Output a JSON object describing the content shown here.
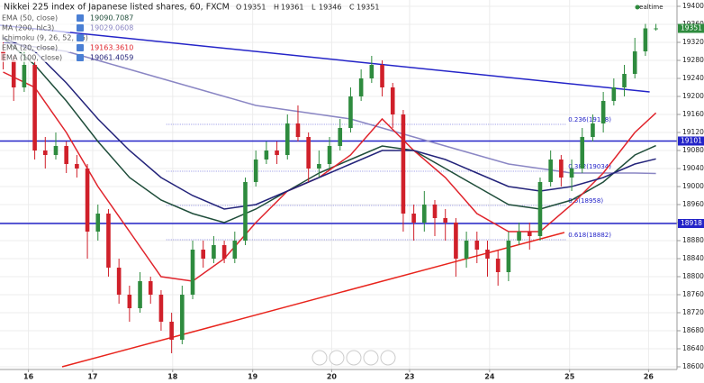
{
  "chart_data": {
    "type": "candlestick",
    "title": "Nikkei 225 index of Japanese listed shares, 60, FXCM",
    "ohlc_header": {
      "labels": [
        "O",
        "H",
        "L",
        "C"
      ],
      "values": [
        19351,
        19361,
        19346,
        19351
      ]
    },
    "realtime": "realtime",
    "up_color": "#2e8b3e",
    "down_color": "#d0202a",
    "ylim": [
      18600,
      19400
    ],
    "yticks": [
      18600,
      18640,
      18680,
      18720,
      18760,
      18800,
      18840,
      18880,
      18920,
      18960,
      19000,
      19040,
      19080,
      19120,
      19160,
      19200,
      19240,
      19280,
      19320,
      19360,
      19400
    ],
    "grid": true,
    "xlim": [
      -0.3,
      64
    ],
    "xticks": [
      {
        "value": 2.4,
        "label": "16"
      },
      {
        "value": 8.5,
        "label": "17"
      },
      {
        "value": 16.1,
        "label": "18"
      },
      {
        "value": 23.7,
        "label": "19"
      },
      {
        "value": 31.2,
        "label": "20"
      },
      {
        "value": 38.6,
        "label": "23"
      },
      {
        "value": 46.2,
        "label": "24"
      },
      {
        "value": 53.8,
        "label": "25"
      },
      {
        "value": 61.3,
        "label": "26"
      }
    ],
    "ohlc": {
      "open": [
        19300,
        19280,
        19220,
        19270,
        19080,
        19070,
        19090,
        19050,
        19040,
        18900,
        18940,
        18820,
        18760,
        18730,
        18790,
        18760,
        18700,
        18660,
        18760,
        18860,
        18840,
        18870,
        18840,
        18880,
        19010,
        19060,
        19080,
        19070,
        19140,
        19110,
        19040,
        19050,
        19090,
        19130,
        19200,
        19240,
        19270,
        19220,
        19160,
        18940,
        18920,
        18960,
        18930,
        18920,
        18840,
        18880,
        18860,
        18840,
        18810,
        18880,
        18900,
        18890,
        19010,
        19060,
        19020,
        19040,
        19110,
        19140,
        19190,
        19220,
        19250,
        19300,
        19351
      ],
      "high": [
        19320,
        19290,
        19300,
        19280,
        19110,
        19120,
        19100,
        19070,
        19050,
        18960,
        18950,
        18840,
        18780,
        18810,
        18800,
        18770,
        18720,
        18780,
        18880,
        18880,
        18890,
        18880,
        18900,
        19020,
        19080,
        19100,
        19100,
        19160,
        19180,
        19120,
        19080,
        19110,
        19150,
        19220,
        19260,
        19290,
        19280,
        19230,
        19170,
        18960,
        18990,
        18970,
        18950,
        18930,
        18900,
        18900,
        18880,
        18860,
        18900,
        18920,
        18920,
        19020,
        19080,
        19070,
        19060,
        19130,
        19160,
        19210,
        19240,
        19270,
        19330,
        19361,
        19361
      ],
      "low": [
        19260,
        19190,
        19210,
        19060,
        19040,
        19060,
        19030,
        19020,
        18840,
        18880,
        18800,
        18740,
        18700,
        18720,
        18740,
        18680,
        18630,
        18650,
        18750,
        18820,
        18830,
        18830,
        18830,
        18870,
        19000,
        19050,
        19050,
        19060,
        19100,
        19010,
        19020,
        19040,
        19080,
        19120,
        19190,
        19230,
        19200,
        19130,
        18900,
        18880,
        18900,
        18890,
        18880,
        18800,
        18820,
        18830,
        18800,
        18780,
        18790,
        18870,
        18860,
        18880,
        19000,
        19000,
        18990,
        19030,
        19100,
        19120,
        19180,
        19200,
        19240,
        19290,
        19346
      ],
      "close": [
        19280,
        19220,
        19270,
        19080,
        19070,
        19090,
        19050,
        19040,
        18900,
        18940,
        18820,
        18760,
        18730,
        18790,
        18760,
        18700,
        18660,
        18760,
        18860,
        18840,
        18870,
        18840,
        18880,
        19010,
        19060,
        19080,
        19070,
        19140,
        19110,
        19040,
        19050,
        19090,
        19130,
        19200,
        19240,
        19270,
        19220,
        19160,
        18940,
        18920,
        18960,
        18930,
        18920,
        18840,
        18880,
        18860,
        18840,
        18810,
        18880,
        18900,
        18890,
        19010,
        19060,
        19020,
        19040,
        19110,
        19140,
        19190,
        19220,
        19250,
        19300,
        19351,
        19351
      ]
    },
    "indicators": [
      {
        "name": "EMA (50, close)",
        "last_label": "19090.7087",
        "color": "#1f4d3a",
        "x": [
          0,
          3,
          6,
          9,
          12,
          15,
          18,
          21,
          24,
          27,
          30,
          33,
          36,
          39,
          42,
          45,
          48,
          51,
          54,
          57,
          60,
          62
        ],
        "values": [
          19330,
          19270,
          19190,
          19100,
          19020,
          18970,
          18940,
          18920,
          18950,
          18990,
          19030,
          19060,
          19090,
          19080,
          19040,
          19000,
          18960,
          18950,
          18970,
          19010,
          19070,
          19090.7087
        ]
      },
      {
        "name": "MA (200, hlc3)",
        "last_label": "19029.0608",
        "color": "#8a86c4",
        "x": [
          0,
          3,
          6,
          9,
          12,
          15,
          18,
          21,
          24,
          27,
          30,
          33,
          36,
          39,
          42,
          45,
          48,
          51,
          54,
          57,
          60,
          62
        ],
        "values": [
          19320,
          19310,
          19300,
          19280,
          19260,
          19240,
          19220,
          19200,
          19180,
          19170,
          19160,
          19150,
          19130,
          19110,
          19090,
          19070,
          19050,
          19040,
          19030,
          19030,
          19030,
          19029.0608
        ]
      },
      {
        "name": "Ichimoku (9, 26, 52, 26)",
        "color": "#9e9e9e"
      },
      {
        "name": "EMA (20, close)",
        "last_label": "19163.3610",
        "color": "#e0242c",
        "x": [
          0,
          3,
          6,
          9,
          12,
          15,
          18,
          21,
          24,
          27,
          30,
          33,
          36,
          39,
          42,
          45,
          48,
          51,
          54,
          57,
          60,
          62
        ],
        "values": [
          19254,
          19220,
          19120,
          19000,
          18900,
          18800,
          18790,
          18840,
          18920,
          18990,
          19020,
          19070,
          19150,
          19080,
          19020,
          18940,
          18900,
          18900,
          18960,
          19030,
          19120,
          19163.361
        ]
      },
      {
        "name": "EMA (100, close)",
        "last_label": "19061.4059",
        "color": "#23237a",
        "x": [
          0,
          3,
          6,
          9,
          12,
          15,
          18,
          21,
          24,
          27,
          30,
          33,
          36,
          39,
          42,
          45,
          48,
          51,
          54,
          57,
          60,
          62
        ],
        "values": [
          19330,
          19300,
          19230,
          19150,
          19080,
          19020,
          18980,
          18950,
          18960,
          18990,
          19020,
          19050,
          19080,
          19080,
          19060,
          19030,
          19000,
          18990,
          19000,
          19020,
          19050,
          19061.4059
        ]
      }
    ],
    "trendlines": [
      {
        "color": "#2424c8",
        "x": [
          -0.3,
          61.4
        ],
        "values": [
          19358,
          19210
        ]
      },
      {
        "color": "#e8241c",
        "x": [
          5.6,
          53.3
        ],
        "values": [
          18600,
          18898
        ]
      }
    ],
    "hlines": [
      {
        "value": 19101,
        "label": "19101",
        "color": "#2424c8"
      },
      {
        "value": 18918,
        "label": "18918",
        "color": "#2424c8"
      }
    ],
    "fib": {
      "color": "#2424c8",
      "x": [
        15.5,
        53.5
      ],
      "levels": [
        {
          "value": 19138,
          "label": "0.236(19138)"
        },
        {
          "value": 19034,
          "label": "0.382(19034)"
        },
        {
          "value": 18958,
          "label": "0.5(18958)"
        },
        {
          "value": 18882,
          "label": "0.618(18882)"
        }
      ]
    },
    "last_price": 19351,
    "last_color": "#2e8b3e"
  }
}
